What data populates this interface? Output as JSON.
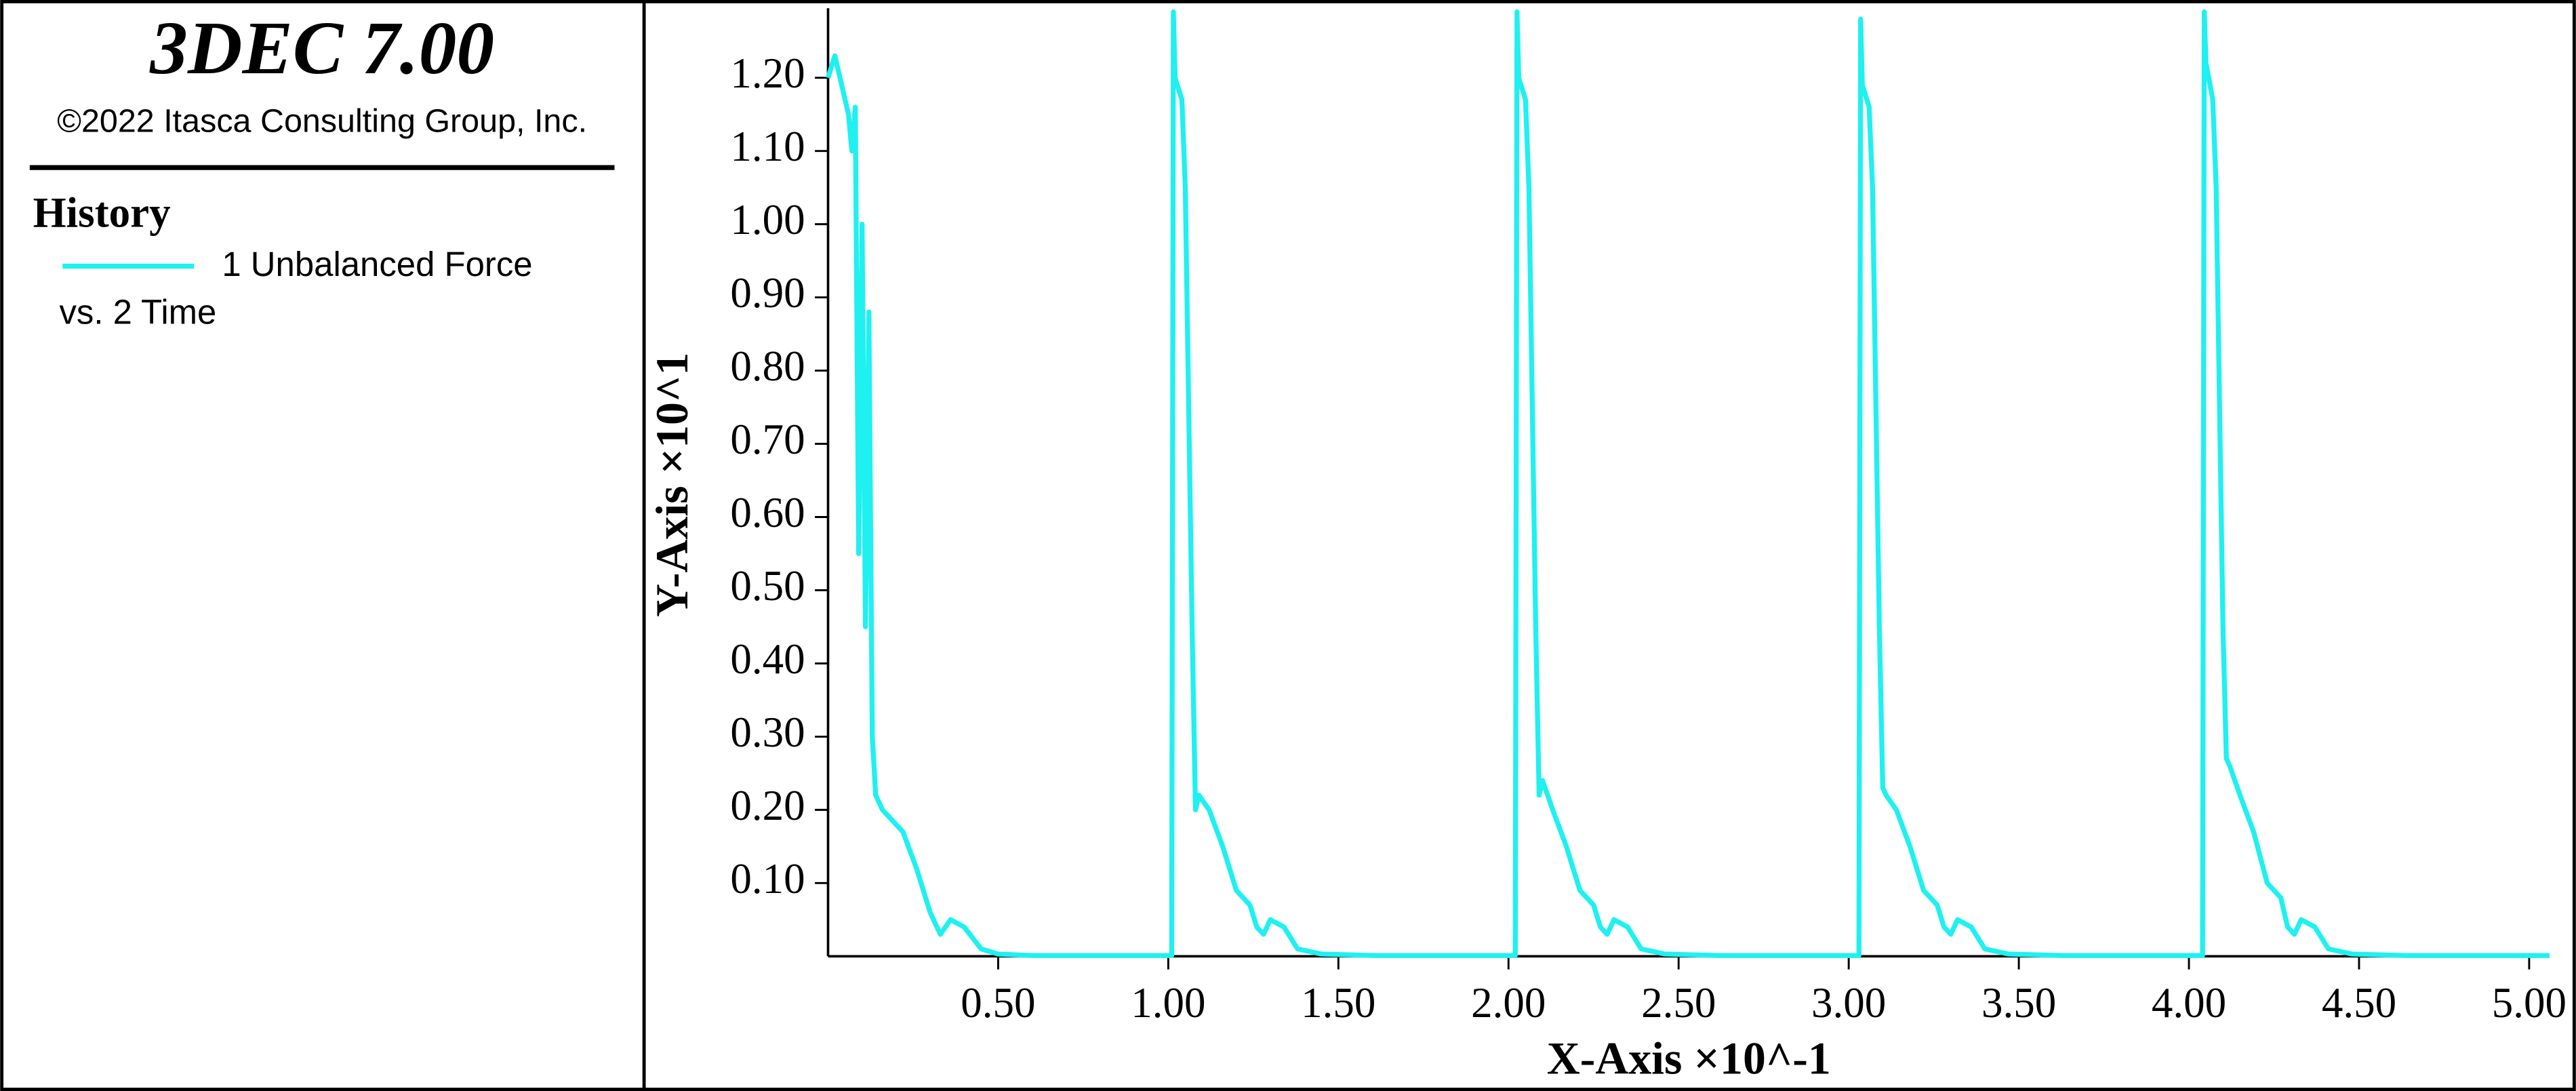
{
  "chart_data": {
    "type": "line",
    "title": "3DEC 7.00",
    "subtitle": "©2022 Itasca Consulting Group, Inc.",
    "legend_title": "History",
    "x_label": "X-Axis ×10^-1",
    "y_label": "Y-Axis ×10^1",
    "xlim": [
      0,
      5.06
    ],
    "ylim": [
      0,
      1.295
    ],
    "xticks": [
      {
        "value": 0.5,
        "label": "0.50"
      },
      {
        "value": 1.0,
        "label": "1.00"
      },
      {
        "value": 1.5,
        "label": "1.50"
      },
      {
        "value": 2.0,
        "label": "2.00"
      },
      {
        "value": 2.5,
        "label": "2.50"
      },
      {
        "value": 3.0,
        "label": "3.00"
      },
      {
        "value": 3.5,
        "label": "3.50"
      },
      {
        "value": 4.0,
        "label": "4.00"
      },
      {
        "value": 4.5,
        "label": "4.50"
      },
      {
        "value": 5.0,
        "label": "5.00"
      }
    ],
    "yticks": [
      {
        "value": 0.1,
        "label": "0.10"
      },
      {
        "value": 0.2,
        "label": "0.20"
      },
      {
        "value": 0.3,
        "label": "0.30"
      },
      {
        "value": 0.4,
        "label": "0.40"
      },
      {
        "value": 0.5,
        "label": "0.50"
      },
      {
        "value": 0.6,
        "label": "0.60"
      },
      {
        "value": 0.7,
        "label": "0.70"
      },
      {
        "value": 0.8,
        "label": "0.80"
      },
      {
        "value": 0.9,
        "label": "0.90"
      },
      {
        "value": 1.0,
        "label": "1.00"
      },
      {
        "value": 1.1,
        "label": "1.10"
      },
      {
        "value": 1.2,
        "label": "1.20"
      }
    ],
    "x": [
      0,
      0.02,
      0.04,
      0.06,
      0.07,
      0.08,
      0.09,
      0.1,
      0.11,
      0.12,
      0.13,
      0.14,
      0.16,
      0.22,
      0.26,
      0.3,
      0.33,
      0.36,
      0.4,
      0.45,
      0.5,
      0.6,
      1.01,
      1.015,
      1.02,
      1.04,
      1.05,
      1.07,
      1.08,
      1.09,
      1.12,
      1.16,
      1.2,
      1.24,
      1.26,
      1.28,
      1.3,
      1.34,
      1.38,
      1.45,
      1.61,
      2.02,
      2.025,
      2.03,
      2.05,
      2.06,
      2.08,
      2.09,
      2.1,
      2.13,
      2.17,
      2.21,
      2.25,
      2.27,
      2.29,
      2.31,
      2.35,
      2.39,
      2.46,
      2.62,
      3.03,
      3.035,
      3.04,
      3.06,
      3.07,
      3.09,
      3.1,
      3.11,
      3.14,
      3.18,
      3.22,
      3.26,
      3.28,
      3.3,
      3.32,
      3.36,
      3.4,
      3.47,
      3.63,
      4.04,
      4.045,
      4.05,
      4.07,
      4.08,
      4.1,
      4.11,
      4.12,
      4.15,
      4.19,
      4.23,
      4.27,
      4.29,
      4.31,
      4.33,
      4.37,
      4.41,
      4.48,
      4.64,
      5.06
    ],
    "series": [
      {
        "name": "1 Unbalanced Force vs. 2 Time",
        "color": "#1ff0f0",
        "values": [
          1.2,
          1.23,
          1.19,
          1.15,
          1.1,
          1.16,
          0.55,
          1.0,
          0.45,
          0.88,
          0.3,
          0.22,
          0.2,
          0.17,
          0.12,
          0.06,
          0.03,
          0.05,
          0.04,
          0.01,
          0.003,
          0.001,
          0.001,
          1.29,
          1.2,
          1.17,
          1.05,
          0.45,
          0.2,
          0.22,
          0.2,
          0.15,
          0.09,
          0.07,
          0.04,
          0.03,
          0.05,
          0.04,
          0.01,
          0.003,
          0.001,
          0.001,
          1.29,
          1.2,
          1.17,
          1.05,
          0.45,
          0.22,
          0.24,
          0.2,
          0.15,
          0.09,
          0.07,
          0.04,
          0.03,
          0.05,
          0.04,
          0.01,
          0.003,
          0.001,
          0.001,
          1.28,
          1.19,
          1.16,
          1.05,
          0.45,
          0.23,
          0.22,
          0.2,
          0.15,
          0.09,
          0.07,
          0.04,
          0.03,
          0.05,
          0.04,
          0.01,
          0.003,
          0.001,
          0.001,
          1.29,
          1.22,
          1.17,
          1.05,
          0.45,
          0.27,
          0.26,
          0.22,
          0.17,
          0.1,
          0.08,
          0.04,
          0.03,
          0.05,
          0.04,
          0.01,
          0.003,
          0.001,
          0.001
        ]
      }
    ]
  }
}
